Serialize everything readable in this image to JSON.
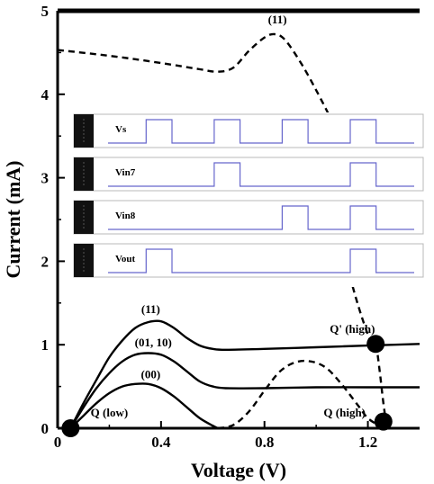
{
  "chart_data": {
    "type": "line",
    "title": "",
    "xlabel": "Voltage (V)",
    "ylabel": "Current (mA)",
    "xlim": [
      0,
      1.4
    ],
    "ylim": [
      0,
      5
    ],
    "x_ticks": [
      0,
      0.4,
      0.8,
      1.2
    ],
    "x_tick_labels": [
      "0",
      "0.4",
      "0.8",
      "1.2"
    ],
    "y_ticks": [
      0,
      1,
      2,
      3,
      4,
      5
    ],
    "y_tick_labels": [
      "0",
      "1",
      "2",
      "3",
      "4",
      "5"
    ],
    "grid": false,
    "series": [
      {
        "style": "solid",
        "points": [
          [
            0.05,
            0
          ],
          [
            0.1,
            0.3
          ],
          [
            0.15,
            0.58
          ],
          [
            0.2,
            0.85
          ],
          [
            0.25,
            1.05
          ],
          [
            0.3,
            1.2
          ],
          [
            0.35,
            1.27
          ],
          [
            0.4,
            1.28
          ],
          [
            0.45,
            1.2
          ],
          [
            0.5,
            1.08
          ],
          [
            0.55,
            0.99
          ],
          [
            0.6,
            0.95
          ],
          [
            0.65,
            0.94
          ],
          [
            0.8,
            0.95
          ],
          [
            1.0,
            0.97
          ],
          [
            1.2,
            0.99
          ],
          [
            1.4,
            1.01
          ]
        ]
      },
      {
        "style": "solid",
        "points": [
          [
            0.05,
            0
          ],
          [
            0.1,
            0.25
          ],
          [
            0.15,
            0.48
          ],
          [
            0.2,
            0.66
          ],
          [
            0.25,
            0.8
          ],
          [
            0.3,
            0.88
          ],
          [
            0.35,
            0.9
          ],
          [
            0.4,
            0.88
          ],
          [
            0.45,
            0.8
          ],
          [
            0.5,
            0.68
          ],
          [
            0.55,
            0.56
          ],
          [
            0.6,
            0.5
          ],
          [
            0.65,
            0.48
          ],
          [
            0.8,
            0.48
          ],
          [
            1.0,
            0.49
          ],
          [
            1.2,
            0.49
          ],
          [
            1.4,
            0.49
          ]
        ]
      },
      {
        "style": "solid",
        "points": [
          [
            0.05,
            0
          ],
          [
            0.1,
            0.15
          ],
          [
            0.15,
            0.3
          ],
          [
            0.2,
            0.42
          ],
          [
            0.25,
            0.5
          ],
          [
            0.3,
            0.53
          ],
          [
            0.35,
            0.53
          ],
          [
            0.4,
            0.48
          ],
          [
            0.45,
            0.38
          ],
          [
            0.5,
            0.25
          ],
          [
            0.55,
            0.12
          ],
          [
            0.6,
            0.03
          ],
          [
            0.62,
            0
          ]
        ]
      },
      {
        "style": "dashed",
        "points": [
          [
            0,
            4.53
          ],
          [
            0.15,
            4.48
          ],
          [
            0.3,
            4.42
          ],
          [
            0.45,
            4.35
          ],
          [
            0.55,
            4.3
          ],
          [
            0.62,
            4.27
          ],
          [
            0.68,
            4.32
          ],
          [
            0.74,
            4.52
          ],
          [
            0.8,
            4.68
          ],
          [
            0.84,
            4.72
          ],
          [
            0.88,
            4.65
          ],
          [
            0.94,
            4.38
          ],
          [
            1.0,
            4.05
          ],
          [
            1.05,
            3.75
          ]
        ]
      },
      {
        "style": "dashed",
        "points": [
          [
            1.1,
            2.2
          ],
          [
            1.12,
            1.95
          ],
          [
            1.15,
            1.6
          ],
          [
            1.18,
            1.3
          ],
          [
            1.21,
            1.05
          ],
          [
            1.23,
            1.01
          ],
          [
            1.245,
            0.7
          ],
          [
            1.26,
            0.3
          ],
          [
            1.27,
            0.1
          ],
          [
            1.28,
            0
          ]
        ]
      },
      {
        "style": "dashed",
        "points": [
          [
            0.62,
            0
          ],
          [
            0.68,
            0.04
          ],
          [
            0.74,
            0.2
          ],
          [
            0.8,
            0.45
          ],
          [
            0.86,
            0.68
          ],
          [
            0.92,
            0.79
          ],
          [
            0.98,
            0.8
          ],
          [
            1.04,
            0.72
          ],
          [
            1.1,
            0.52
          ],
          [
            1.16,
            0.28
          ],
          [
            1.2,
            0.12
          ],
          [
            1.25,
            0.02
          ]
        ]
      }
    ],
    "markers": [
      [
        0.05,
        0
      ],
      [
        1.23,
        1.01
      ],
      [
        1.26,
        0.08
      ]
    ],
    "annotations": [
      {
        "text": "(11)",
        "x": 0.85,
        "y": 4.85
      },
      {
        "text": "(11)",
        "x": 0.36,
        "y": 1.38
      },
      {
        "text": "(01, 10)",
        "x": 0.37,
        "y": 0.98
      },
      {
        "text": "(00)",
        "x": 0.36,
        "y": 0.6
      },
      {
        "text": "Q (low)",
        "x": 0.2,
        "y": 0.14
      },
      {
        "text": "Q' (high)",
        "x": 1.14,
        "y": 1.14
      },
      {
        "text": "Q (high)",
        "x": 1.11,
        "y": 0.14
      }
    ],
    "inset": {
      "description": "timing waveforms",
      "rows": [
        {
          "label": "Vs",
          "pattern": [
            0,
            1,
            0,
            1,
            0,
            1,
            0,
            1,
            0
          ]
        },
        {
          "label": "Vin7",
          "pattern": [
            0,
            0,
            0,
            1,
            0,
            0,
            0,
            1,
            0
          ]
        },
        {
          "label": "Vin8",
          "pattern": [
            0,
            0,
            0,
            0,
            0,
            1,
            0,
            1,
            0
          ]
        },
        {
          "label": "Vout",
          "pattern": [
            0,
            1,
            0,
            0,
            0,
            0,
            0,
            1,
            0
          ]
        }
      ]
    }
  }
}
